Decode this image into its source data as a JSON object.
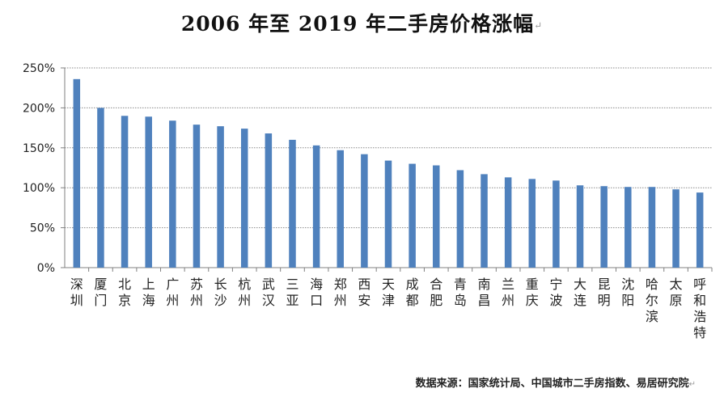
{
  "chart_data": {
    "type": "bar",
    "title": "2006 年至 2019 年二手房价格涨幅",
    "xlabel": "",
    "ylabel": "",
    "ylim": [
      0,
      250
    ],
    "yticks": [
      0,
      50,
      100,
      150,
      200,
      250
    ],
    "ytick_labels": [
      "0%",
      "50%",
      "100%",
      "150%",
      "200%",
      "250%"
    ],
    "grid": true,
    "bar_color": "#4f81bd",
    "categories": [
      "深圳",
      "厦门",
      "北京",
      "上海",
      "广州",
      "苏州",
      "长沙",
      "杭州",
      "武汉",
      "三亚",
      "海口",
      "郑州",
      "西安",
      "天津",
      "成都",
      "合肥",
      "青岛",
      "南昌",
      "兰州",
      "重庆",
      "宁波",
      "大连",
      "昆明",
      "沈阳",
      "哈尔滨",
      "太原",
      "呼和浩特"
    ],
    "values": [
      236,
      200,
      190,
      189,
      184,
      179,
      177,
      174,
      168,
      160,
      153,
      147,
      142,
      134,
      130,
      128,
      122,
      117,
      113,
      111,
      109,
      103,
      102,
      101,
      101,
      98,
      94
    ]
  },
  "source_note": "数据来源：国家统计局、中国城市二手房指数、易居研究院",
  "paragraph_mark": "↵"
}
